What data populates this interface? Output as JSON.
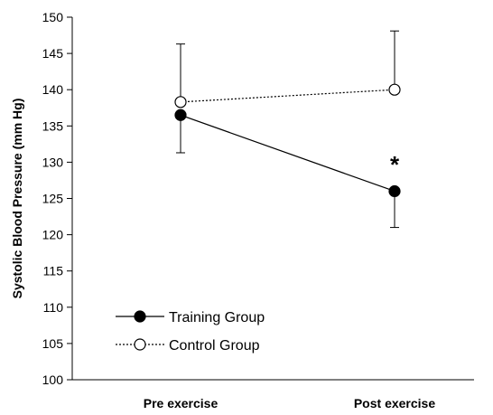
{
  "chart_data": {
    "type": "line",
    "categories": [
      "Pre exercise",
      "Post exercise"
    ],
    "ylabel": "Systolic Blood Pressure (mm Hg)",
    "xlabel": "",
    "ylim": [
      100,
      150
    ],
    "yticks": [
      "100",
      "105",
      "110",
      "115",
      "120",
      "125",
      "130",
      "135",
      "140",
      "145",
      "150"
    ],
    "series": [
      {
        "name": "Training Group",
        "values": [
          136.5,
          126.0
        ],
        "error_lower": [
          131.3,
          121.0
        ],
        "error_upper": [
          136.5,
          126.0
        ],
        "marker": "filled-circle",
        "line_style": "solid"
      },
      {
        "name": "Control Group",
        "values": [
          138.3,
          140.0
        ],
        "error_lower": [
          138.3,
          140.0
        ],
        "error_upper": [
          146.3,
          148.1
        ],
        "marker": "open-circle",
        "line_style": "dotted"
      }
    ],
    "annotations": [
      {
        "text": "*",
        "category": "Post exercise",
        "y": 130.3
      }
    ],
    "legend_position": "bottom-left",
    "grid": false
  }
}
